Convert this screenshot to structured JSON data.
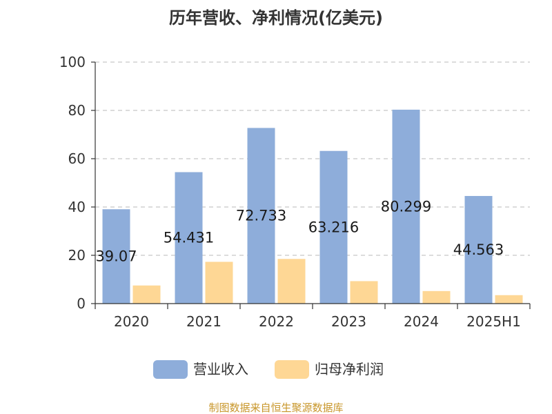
{
  "chart_data": {
    "type": "bar",
    "title": "历年营收、净利情况(亿美元)",
    "categories": [
      "2020",
      "2021",
      "2022",
      "2023",
      "2024",
      "2025H1"
    ],
    "series": [
      {
        "name": "营业收入",
        "values": [
          39.07,
          54.431,
          72.733,
          63.216,
          80.299,
          44.563
        ],
        "color": "#8eadda",
        "show_labels": true
      },
      {
        "name": "归母净利润",
        "values": [
          7.5,
          17.3,
          18.5,
          9.3,
          5.2,
          3.5
        ],
        "color": "#fed795",
        "show_labels": false
      }
    ],
    "ylim": [
      0,
      100
    ],
    "yticks": [
      0,
      20,
      40,
      60,
      80,
      100
    ],
    "grid": true,
    "legend_position": "bottom"
  },
  "source": "制图数据来自恒生聚源数据库"
}
